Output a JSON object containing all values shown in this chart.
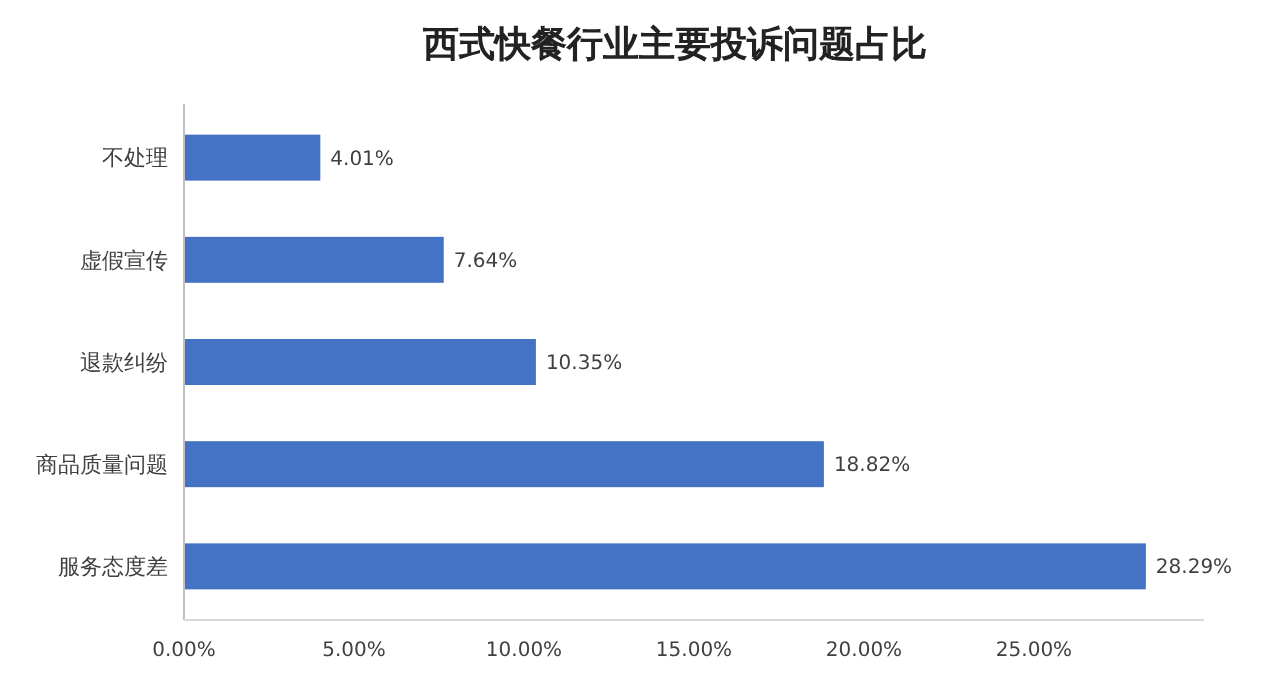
{
  "chart_data": {
    "type": "bar",
    "orientation": "horizontal",
    "title": "西式快餐行业主要投诉问题占比",
    "categories": [
      "不处理",
      "虚假宣传",
      "退款纠纷",
      "商品质量问题",
      "服务态度差"
    ],
    "values": [
      4.01,
      7.64,
      10.35,
      18.82,
      28.29
    ],
    "value_labels": [
      "4.01%",
      "7.64%",
      "10.35%",
      "18.82%",
      "28.29%"
    ],
    "color": "#4472c4",
    "xlim": [
      0,
      30
    ],
    "xticks": [
      {
        "value": 0,
        "label": "0.00%"
      },
      {
        "value": 5,
        "label": "5.00%"
      },
      {
        "value": 10,
        "label": "10.00%"
      },
      {
        "value": 15,
        "label": "15.00%"
      },
      {
        "value": 20,
        "label": "20.00%"
      },
      {
        "value": 25,
        "label": "25.00%"
      }
    ]
  }
}
